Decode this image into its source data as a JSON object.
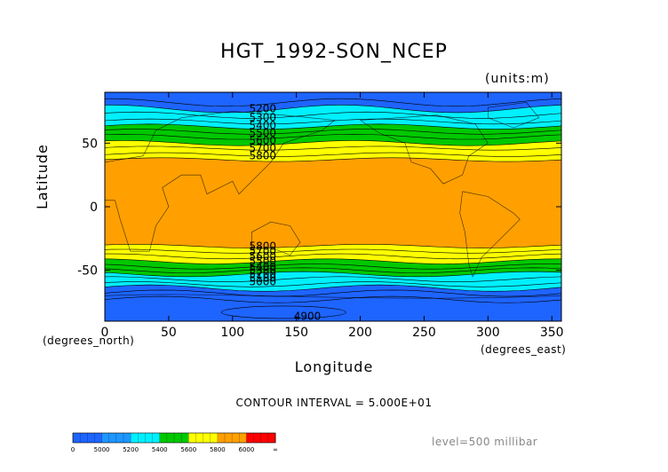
{
  "title": "HGT_1992-SON_NCEP",
  "units": "(units:m)",
  "axes": {
    "x_ticks": [
      "0",
      "50",
      "100",
      "150",
      "200",
      "250",
      "300",
      "350"
    ],
    "y_ticks": [
      "50",
      "0",
      "-50"
    ],
    "xlabel": "Longitude",
    "ylabel": "Latitude",
    "x_note": "(degrees_east)",
    "y_note": "(degrees_north)"
  },
  "contour_interval": "CONTOUR INTERVAL = 5.000E+01",
  "level": "level=500 millibar",
  "contour_labels": {
    "north": [
      "5200",
      "5300",
      "5400",
      "5500",
      "5600",
      "5700",
      "5800"
    ],
    "south": [
      "5800",
      "5700",
      "5600",
      "5500",
      "5400",
      "5300",
      "5200",
      "5100",
      "5000"
    ],
    "bottom": "4900"
  },
  "colorbar": {
    "labels": [
      "0",
      "5000",
      "5200",
      "5400",
      "5600",
      "5800",
      "6000",
      "∞"
    ],
    "colors": [
      "#1e64ff",
      "#1e96ff",
      "#00f0ff",
      "#00c800",
      "#ffff00",
      "#ffa000",
      "#ff0000"
    ]
  },
  "chart_data": {
    "type": "heatmap",
    "variable": "HGT",
    "title": "HGT_1992-SON_NCEP",
    "xlabel": "Longitude",
    "ylabel": "Latitude",
    "xlim": [
      0,
      357.5
    ],
    "ylim": [
      -90,
      90
    ],
    "x_ticks": [
      0,
      50,
      100,
      150,
      200,
      250,
      300,
      350
    ],
    "y_ticks": [
      50,
      0,
      -50
    ],
    "contour_interval": 50,
    "bands": [
      {
        "range": [
          0,
          5200
        ],
        "color": "#1e64ff"
      },
      {
        "range": [
          5200,
          5400
        ],
        "color": "#00f0ff"
      },
      {
        "range": [
          5400,
          5600
        ],
        "color": "#00c800"
      },
      {
        "range": [
          5600,
          5800
        ],
        "color": "#ffff00"
      },
      {
        "range": [
          5800,
          6000
        ],
        "color": "#ffa000"
      }
    ],
    "approx_band_latitudes_north": {
      "5200": 77,
      "5400": 63,
      "5600": 50,
      "5800": 37
    },
    "approx_band_latitudes_south": {
      "5800": -31,
      "5600": -43,
      "5400": -53,
      "5200": -64
    },
    "units": "m"
  }
}
